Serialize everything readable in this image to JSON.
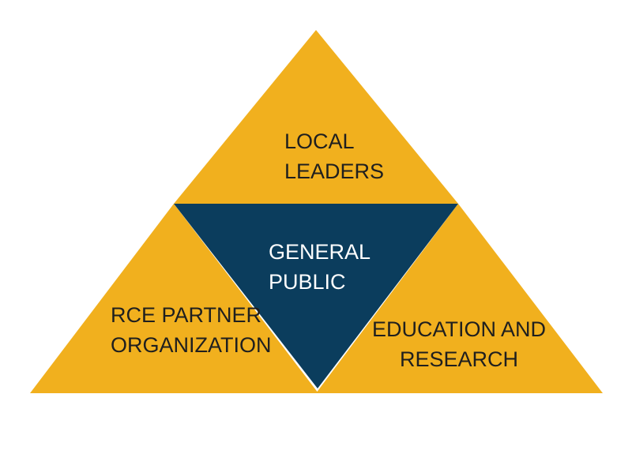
{
  "colors": {
    "gold": "#F1B01E",
    "navy": "#0B3D5D",
    "text_dark": "#1f1f1f",
    "text_light": "#ffffff"
  },
  "triangles": {
    "top": {
      "line1": "LOCAL",
      "line2": "LEADERS"
    },
    "center": {
      "line1": "GENERAL",
      "line2": "PUBLIC"
    },
    "left": {
      "line1": "RCE PARTNER",
      "line2": "ORGANIZATION"
    },
    "right": {
      "line1": "EDUCATION AND",
      "line2": "RESEARCH"
    }
  }
}
